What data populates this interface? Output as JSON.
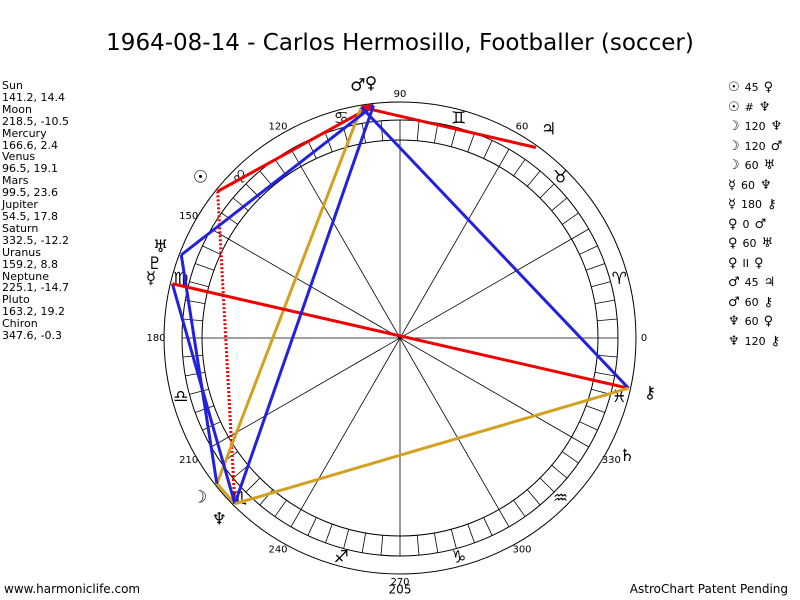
{
  "title": "1964-08-14 - Carlos Hermosillo, Footballer (soccer)",
  "planets": [
    {
      "name": "Sun",
      "glyph": "☉",
      "coords": "141.2, 14.4"
    },
    {
      "name": "Moon",
      "glyph": "☽",
      "coords": "218.5, -10.5"
    },
    {
      "name": "Mercury",
      "glyph": "☿",
      "coords": "166.6, 2.4"
    },
    {
      "name": "Venus",
      "glyph": "♀",
      "coords": "96.5, 19.1"
    },
    {
      "name": "Mars",
      "glyph": "♂",
      "coords": "99.5, 23.6"
    },
    {
      "name": "Jupiter",
      "glyph": "♃",
      "coords": "54.5, 17.8"
    },
    {
      "name": "Saturn",
      "glyph": "♄",
      "coords": "332.5, -12.2"
    },
    {
      "name": "Uranus",
      "glyph": "♅",
      "coords": "159.2, 8.8"
    },
    {
      "name": "Neptune",
      "glyph": "♆",
      "coords": "225.1, -14.7"
    },
    {
      "name": "Pluto",
      "glyph": "♇",
      "coords": "163.2, 19.2"
    },
    {
      "name": "Chiron",
      "glyph": "⚷",
      "coords": "347.6, -0.3"
    }
  ],
  "aspects": [
    [
      "☉",
      "45",
      "♀"
    ],
    [
      "☉",
      "#",
      "♆"
    ],
    [
      "☽",
      "120",
      "♆"
    ],
    [
      "☽",
      "120",
      "♂"
    ],
    [
      "☽",
      "60",
      "♅"
    ],
    [
      "☿",
      "60",
      "♆"
    ],
    [
      "☿",
      "180",
      "⚷"
    ],
    [
      "♀",
      "0",
      "♂"
    ],
    [
      "♀",
      "60",
      "♅"
    ],
    [
      "♀",
      "II",
      "♀"
    ],
    [
      "♂",
      "45",
      "♃"
    ],
    [
      "♂",
      "60",
      "⚷"
    ],
    [
      "♆",
      "60",
      "♀"
    ],
    [
      "♆",
      "120",
      "⚷"
    ]
  ],
  "signs": [
    "♈",
    "♉",
    "♊",
    "♋",
    "♌",
    "♍",
    "♎",
    "♏",
    "♐",
    "♑",
    "♒",
    "♓"
  ],
  "degree_labels": [
    "0",
    "60",
    "90",
    "120",
    "150",
    "180",
    "210",
    "240",
    "270",
    "300",
    "330"
  ],
  "bottom_label": "205",
  "footer_left": "www.harmoniclife.com",
  "footer_right": "AstroChart Patent Pending"
}
